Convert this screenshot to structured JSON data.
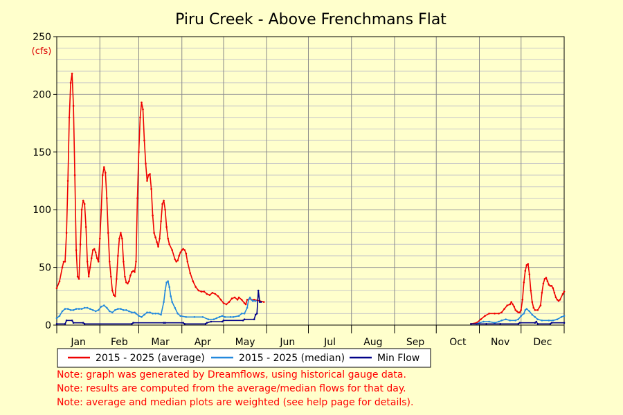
{
  "chart_data": {
    "type": "line",
    "title": "Piru Creek - Above Frenchmans Flat",
    "ylabel": "(cfs)",
    "ylim": [
      0,
      250
    ],
    "yticks": [
      0,
      50,
      100,
      150,
      200,
      250
    ],
    "x_unit": "day of year",
    "xlim": [
      1,
      366
    ],
    "months": [
      "Jan",
      "Feb",
      "Mar",
      "Apr",
      "May",
      "Jun",
      "Jul",
      "Aug",
      "Sep",
      "Oct",
      "Nov",
      "Dec"
    ],
    "grid": true,
    "legend_position": "bottom",
    "series": [
      {
        "name": "2015 - 2025 (average)",
        "color": "#ee0000",
        "points": [
          [
            1,
            32
          ],
          [
            3,
            38
          ],
          [
            5,
            50
          ],
          [
            6,
            55
          ],
          [
            7,
            55
          ],
          [
            8,
            80
          ],
          [
            9,
            125
          ],
          [
            10,
            180
          ],
          [
            11,
            210
          ],
          [
            12,
            218
          ],
          [
            13,
            190
          ],
          [
            14,
            130
          ],
          [
            15,
            65
          ],
          [
            16,
            42
          ],
          [
            17,
            40
          ],
          [
            18,
            70
          ],
          [
            19,
            100
          ],
          [
            20,
            108
          ],
          [
            21,
            105
          ],
          [
            22,
            85
          ],
          [
            23,
            55
          ],
          [
            24,
            42
          ],
          [
            25,
            50
          ],
          [
            26,
            58
          ],
          [
            27,
            65
          ],
          [
            28,
            66
          ],
          [
            29,
            63
          ],
          [
            30,
            58
          ],
          [
            31,
            55
          ],
          [
            32,
            75
          ],
          [
            33,
            100
          ],
          [
            34,
            130
          ],
          [
            35,
            137
          ],
          [
            36,
            132
          ],
          [
            37,
            110
          ],
          [
            38,
            80
          ],
          [
            39,
            55
          ],
          [
            40,
            42
          ],
          [
            41,
            30
          ],
          [
            42,
            26
          ],
          [
            43,
            25
          ],
          [
            44,
            40
          ],
          [
            45,
            60
          ],
          [
            46,
            75
          ],
          [
            47,
            80
          ],
          [
            48,
            75
          ],
          [
            49,
            55
          ],
          [
            50,
            42
          ],
          [
            51,
            37
          ],
          [
            52,
            36
          ],
          [
            53,
            38
          ],
          [
            54,
            43
          ],
          [
            55,
            46
          ],
          [
            56,
            47
          ],
          [
            57,
            46
          ],
          [
            58,
            55
          ],
          [
            59,
            110
          ],
          [
            60,
            150
          ],
          [
            61,
            180
          ],
          [
            62,
            193
          ],
          [
            63,
            187
          ],
          [
            64,
            160
          ],
          [
            65,
            140
          ],
          [
            66,
            125
          ],
          [
            67,
            130
          ],
          [
            68,
            131
          ],
          [
            69,
            118
          ],
          [
            70,
            95
          ],
          [
            71,
            80
          ],
          [
            72,
            76
          ],
          [
            73,
            72
          ],
          [
            74,
            68
          ],
          [
            75,
            75
          ],
          [
            76,
            90
          ],
          [
            77,
            105
          ],
          [
            78,
            108
          ],
          [
            79,
            100
          ],
          [
            80,
            85
          ],
          [
            81,
            75
          ],
          [
            82,
            70
          ],
          [
            84,
            65
          ],
          [
            86,
            57
          ],
          [
            87,
            55
          ],
          [
            88,
            56
          ],
          [
            89,
            60
          ],
          [
            90,
            63
          ],
          [
            91,
            65
          ],
          [
            92,
            66
          ],
          [
            93,
            65
          ],
          [
            94,
            62
          ],
          [
            95,
            55
          ],
          [
            97,
            45
          ],
          [
            99,
            38
          ],
          [
            101,
            33
          ],
          [
            103,
            30
          ],
          [
            105,
            29
          ],
          [
            107,
            29
          ],
          [
            109,
            27
          ],
          [
            111,
            26
          ],
          [
            113,
            28
          ],
          [
            115,
            27
          ],
          [
            117,
            25
          ],
          [
            119,
            22
          ],
          [
            121,
            19
          ],
          [
            123,
            18
          ],
          [
            125,
            20
          ],
          [
            127,
            23
          ],
          [
            129,
            24
          ],
          [
            131,
            22
          ],
          [
            132,
            24
          ],
          [
            134,
            22
          ],
          [
            136,
            19
          ],
          [
            137,
            18
          ],
          [
            138,
            22
          ],
          [
            140,
            23
          ],
          [
            141,
            22
          ],
          [
            143,
            22
          ],
          [
            147,
            21
          ],
          [
            150,
            20
          ]
        ]
      },
      {
        "name": "2015 - 2025 (median)",
        "color": "#2288dd",
        "points": [
          [
            1,
            6
          ],
          [
            3,
            8
          ],
          [
            5,
            12
          ],
          [
            7,
            14
          ],
          [
            9,
            14
          ],
          [
            11,
            13
          ],
          [
            13,
            13
          ],
          [
            15,
            14
          ],
          [
            17,
            14
          ],
          [
            19,
            14
          ],
          [
            21,
            15
          ],
          [
            23,
            15
          ],
          [
            25,
            14
          ],
          [
            27,
            13
          ],
          [
            29,
            12
          ],
          [
            31,
            13
          ],
          [
            33,
            16
          ],
          [
            35,
            17
          ],
          [
            37,
            15
          ],
          [
            39,
            12
          ],
          [
            41,
            11
          ],
          [
            43,
            13
          ],
          [
            45,
            14
          ],
          [
            47,
            14
          ],
          [
            49,
            13
          ],
          [
            51,
            13
          ],
          [
            53,
            12
          ],
          [
            55,
            11
          ],
          [
            57,
            11
          ],
          [
            58,
            10
          ],
          [
            60,
            8
          ],
          [
            62,
            7
          ],
          [
            64,
            9
          ],
          [
            66,
            11
          ],
          [
            68,
            11
          ],
          [
            70,
            10
          ],
          [
            72,
            10
          ],
          [
            74,
            10
          ],
          [
            76,
            9
          ],
          [
            78,
            20
          ],
          [
            79,
            30
          ],
          [
            80,
            37
          ],
          [
            81,
            38
          ],
          [
            82,
            33
          ],
          [
            83,
            25
          ],
          [
            84,
            20
          ],
          [
            86,
            15
          ],
          [
            88,
            10
          ],
          [
            90,
            8
          ],
          [
            94,
            7
          ],
          [
            100,
            7
          ],
          [
            106,
            7
          ],
          [
            110,
            5
          ],
          [
            114,
            5
          ],
          [
            116,
            6
          ],
          [
            118,
            7
          ],
          [
            120,
            8
          ],
          [
            122,
            7
          ],
          [
            126,
            7
          ],
          [
            128,
            7
          ],
          [
            132,
            8
          ],
          [
            134,
            10
          ],
          [
            136,
            10
          ],
          [
            138,
            15
          ],
          [
            139,
            22
          ],
          [
            140,
            24
          ],
          [
            141,
            22
          ],
          [
            142,
            21
          ],
          [
            144,
            21
          ]
        ]
      },
      {
        "name": "Min Flow",
        "color": "#000088",
        "points": [
          [
            1,
            1
          ],
          [
            7,
            1
          ],
          [
            8,
            4
          ],
          [
            12,
            4
          ],
          [
            13,
            2
          ],
          [
            20,
            2
          ],
          [
            21,
            1
          ],
          [
            55,
            1
          ],
          [
            56,
            2
          ],
          [
            78,
            2
          ],
          [
            79,
            2
          ],
          [
            92,
            2
          ],
          [
            93,
            1
          ],
          [
            108,
            1
          ],
          [
            109,
            2
          ],
          [
            112,
            3
          ],
          [
            120,
            3
          ],
          [
            121,
            4
          ],
          [
            135,
            4
          ],
          [
            136,
            5
          ],
          [
            143,
            5
          ],
          [
            144,
            9
          ],
          [
            145,
            10
          ],
          [
            146,
            30
          ],
          [
            147,
            20
          ],
          [
            148,
            20
          ]
        ]
      },
      {
        "name": "2015 - 2025 (average) fall",
        "color": "#ee0000",
        "points": [
          [
            299,
            1
          ],
          [
            303,
            2
          ],
          [
            306,
            5
          ],
          [
            309,
            8
          ],
          [
            312,
            10
          ],
          [
            316,
            10
          ],
          [
            319,
            10
          ],
          [
            321,
            11
          ],
          [
            323,
            14
          ],
          [
            325,
            17
          ],
          [
            327,
            18
          ],
          [
            328,
            20
          ],
          [
            329,
            18
          ],
          [
            330,
            16
          ],
          [
            331,
            13
          ],
          [
            332,
            12
          ],
          [
            333,
            11
          ],
          [
            334,
            11
          ],
          [
            335,
            13
          ],
          [
            336,
            22
          ],
          [
            337,
            37
          ],
          [
            338,
            47
          ],
          [
            339,
            52
          ],
          [
            340,
            53
          ],
          [
            341,
            44
          ],
          [
            342,
            30
          ],
          [
            343,
            20
          ],
          [
            344,
            15
          ],
          [
            345,
            13
          ],
          [
            347,
            13
          ],
          [
            349,
            17
          ],
          [
            350,
            28
          ],
          [
            351,
            36
          ],
          [
            352,
            40
          ],
          [
            353,
            41
          ],
          [
            354,
            38
          ],
          [
            355,
            35
          ],
          [
            356,
            34
          ],
          [
            357,
            34
          ],
          [
            358,
            32
          ],
          [
            359,
            28
          ],
          [
            360,
            24
          ],
          [
            361,
            22
          ],
          [
            362,
            21
          ],
          [
            363,
            22
          ],
          [
            365,
            27
          ],
          [
            366,
            29
          ]
        ]
      },
      {
        "name": "2015 - 2025 (median) fall",
        "color": "#2288dd",
        "points": [
          [
            303,
            1
          ],
          [
            305,
            2
          ],
          [
            308,
            3
          ],
          [
            312,
            3
          ],
          [
            316,
            2
          ],
          [
            319,
            3
          ],
          [
            321,
            4
          ],
          [
            324,
            5
          ],
          [
            327,
            4
          ],
          [
            331,
            4
          ],
          [
            333,
            5
          ],
          [
            335,
            8
          ],
          [
            337,
            10
          ],
          [
            338,
            13
          ],
          [
            339,
            14
          ],
          [
            341,
            12
          ],
          [
            343,
            9
          ],
          [
            345,
            7
          ],
          [
            347,
            5
          ],
          [
            350,
            4
          ],
          [
            355,
            4
          ],
          [
            358,
            4
          ],
          [
            361,
            5
          ],
          [
            364,
            7
          ],
          [
            366,
            8
          ]
        ]
      },
      {
        "name": "Min Flow fall",
        "color": "#000088",
        "points": [
          [
            299,
            1
          ],
          [
            310,
            1
          ],
          [
            320,
            1
          ],
          [
            333,
            1
          ],
          [
            334,
            2
          ],
          [
            345,
            2
          ],
          [
            346,
            3
          ],
          [
            347,
            1
          ],
          [
            356,
            1
          ],
          [
            357,
            2
          ],
          [
            366,
            2
          ]
        ]
      }
    ]
  },
  "legend": [
    {
      "label": "2015 - 2025 (average)",
      "color": "#ee0000"
    },
    {
      "label": "2015 - 2025 (median)",
      "color": "#2288dd"
    },
    {
      "label": "Min Flow",
      "color": "#000088"
    }
  ],
  "notes": [
    "Note: graph was generated by Dreamflows, using historical gauge data.",
    "Note: results are computed from the average/median flows for that day.",
    "Note: average and median plots are weighted (see help page for details)."
  ]
}
